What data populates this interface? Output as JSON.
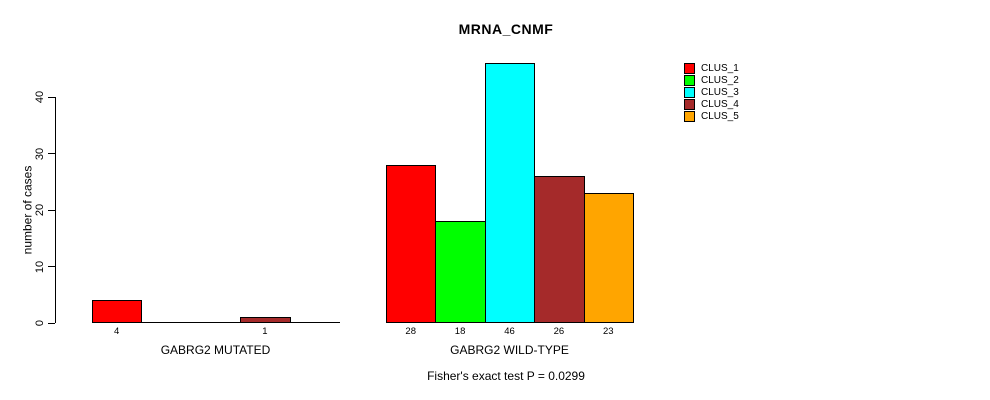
{
  "chart_data": {
    "type": "bar",
    "title": "MRNA_CNMF",
    "ylabel": "number of cases",
    "xlabel": "",
    "ylim": [
      0,
      46
    ],
    "yticks": [
      0,
      10,
      20,
      30,
      40
    ],
    "grid": false,
    "legend_position": "top-right",
    "series": [
      "CLUS_1",
      "CLUS_2",
      "CLUS_3",
      "CLUS_4",
      "CLUS_5"
    ],
    "colors": [
      "#ff0000",
      "#00ff00",
      "#00ffff",
      "#a52a2a",
      "#ffa500"
    ],
    "groups": [
      {
        "label": "GABRG2 MUTATED",
        "values": [
          4,
          0,
          0,
          1,
          0
        ],
        "bar_labels": [
          "4",
          "",
          "",
          "1",
          ""
        ]
      },
      {
        "label": "GABRG2 WILD-TYPE",
        "values": [
          28,
          18,
          46,
          26,
          23
        ],
        "bar_labels": [
          "28",
          "18",
          "46",
          "26",
          "23"
        ]
      }
    ],
    "annotation": "Fisher's exact test P = 0.0299"
  }
}
